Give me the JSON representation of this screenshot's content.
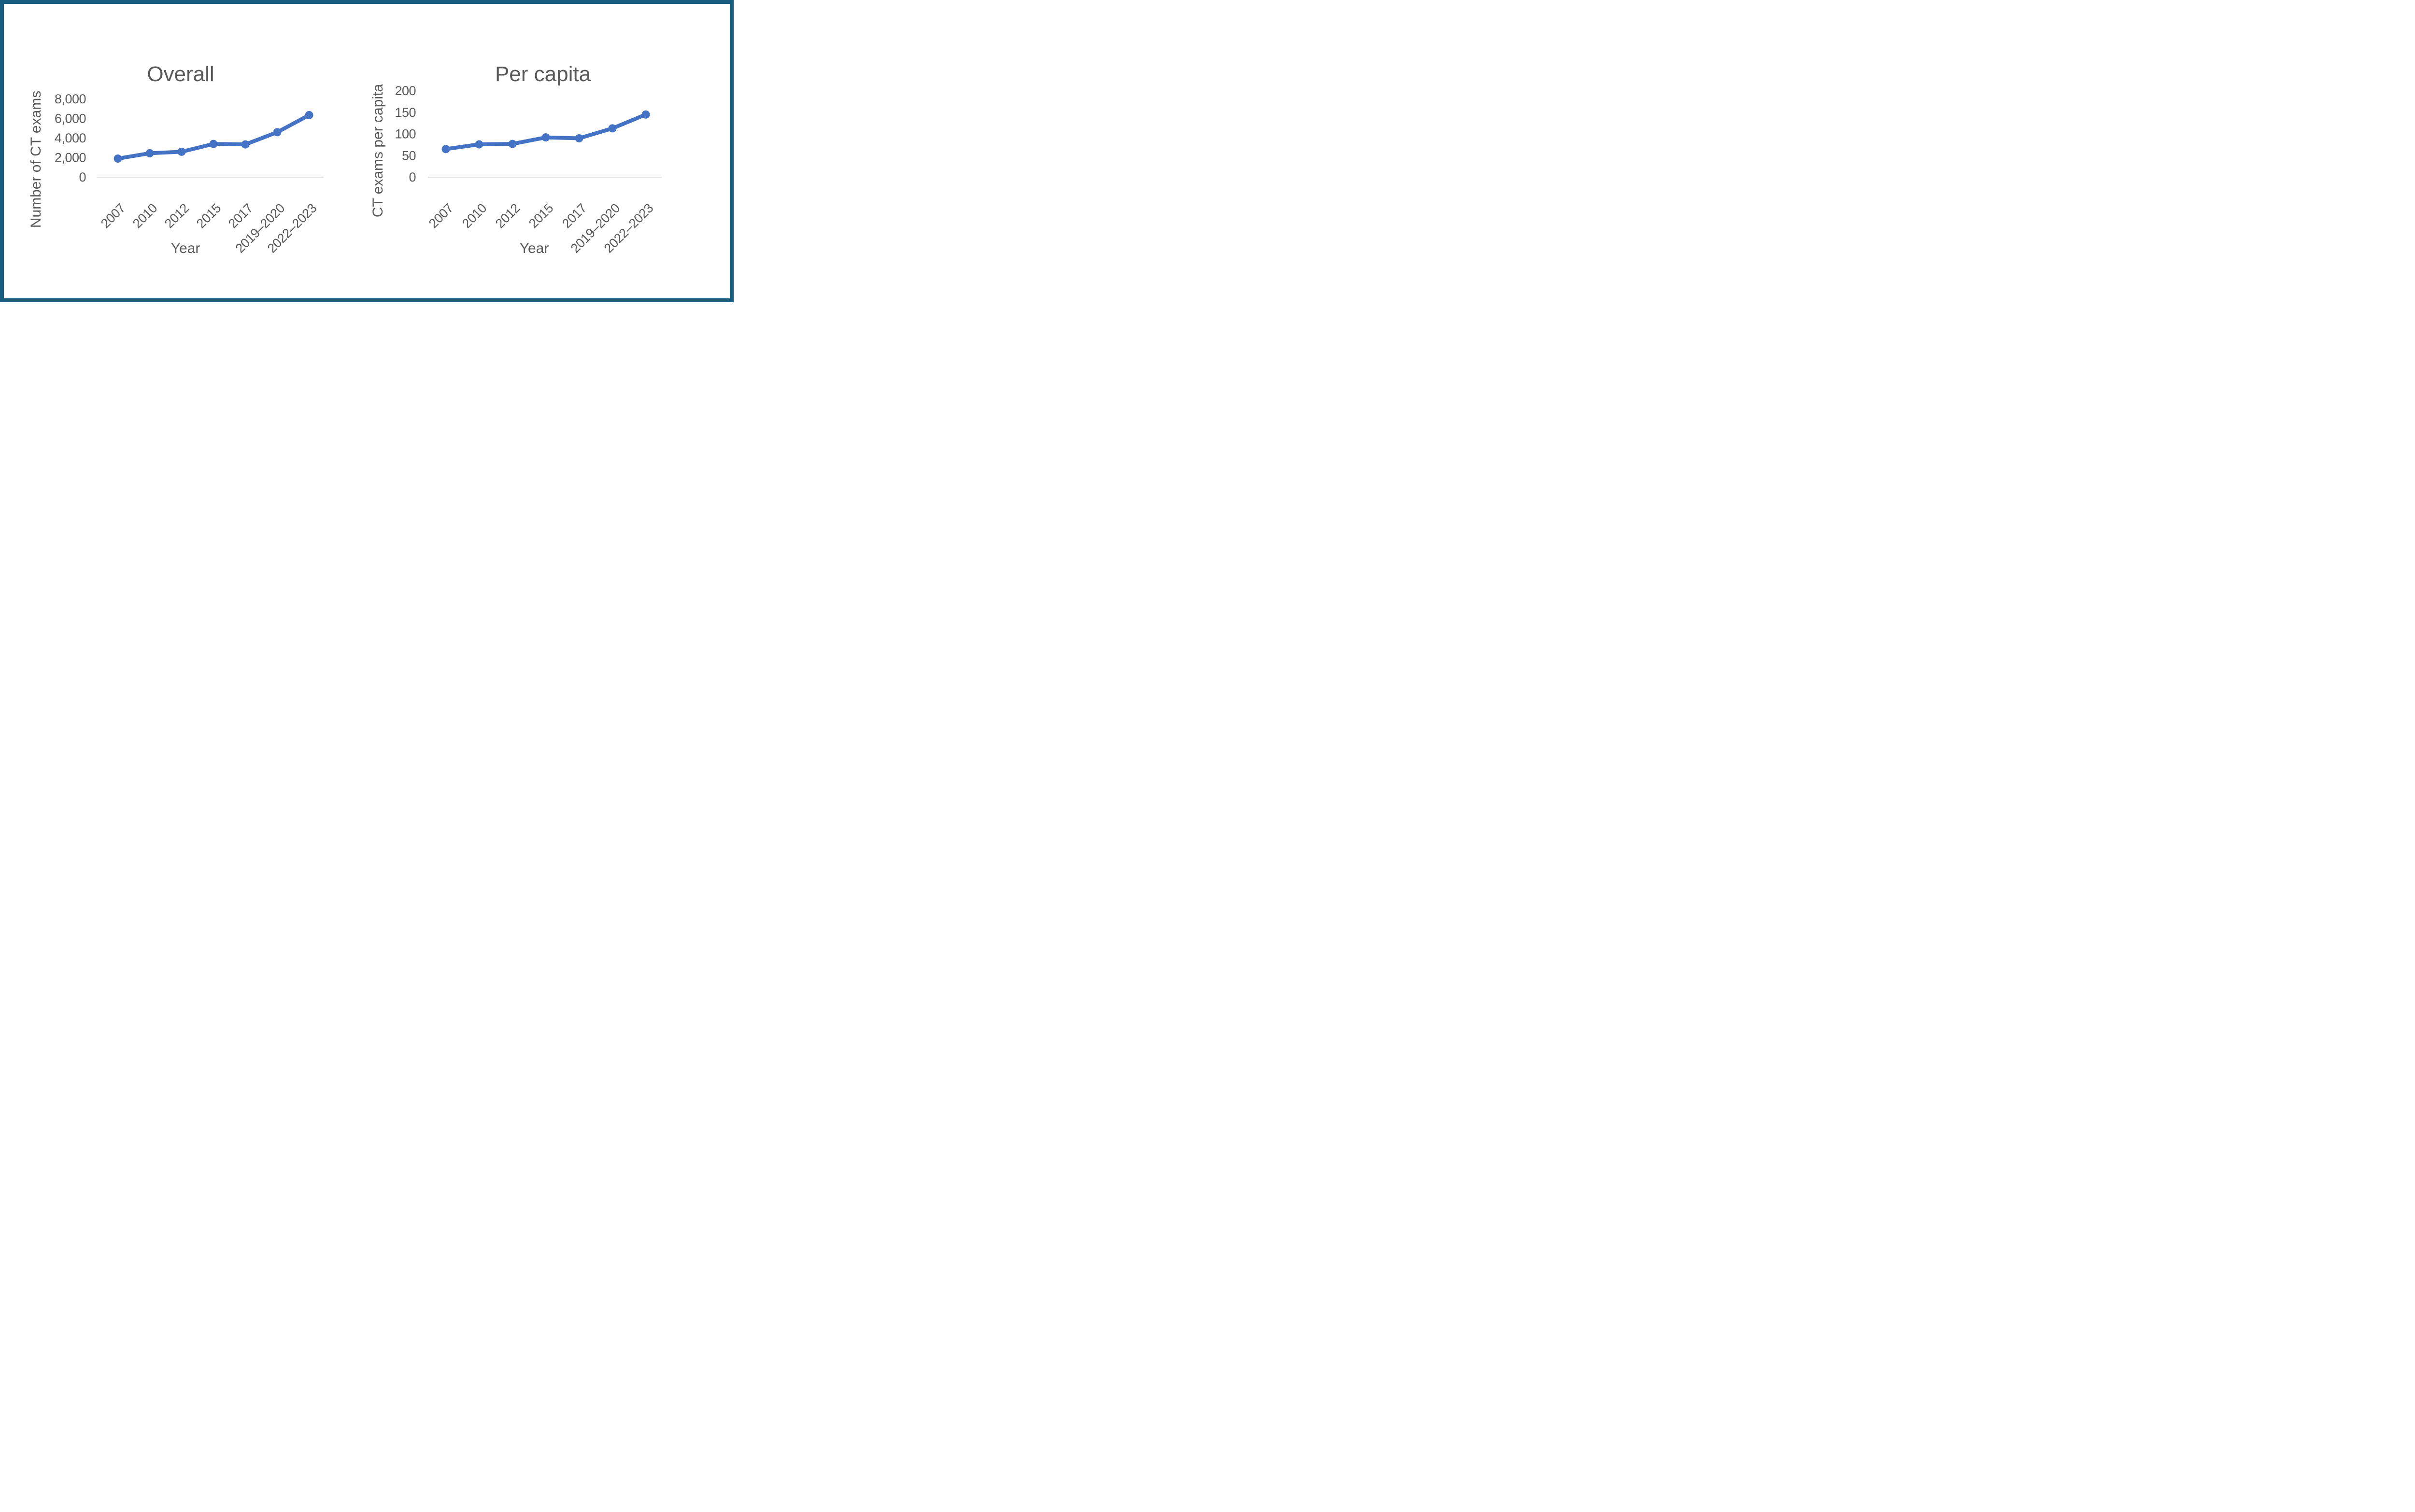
{
  "styles": {
    "frame_border_color": "#175E80",
    "background_color": "#FFFFFF",
    "line_color": "#4472C4",
    "text_color": "#595959",
    "axis_line_color": "#D9D9D9"
  },
  "chart_data": [
    {
      "type": "line",
      "title": "Overall",
      "xlabel": "Year",
      "ylabel": "Number of CT exams",
      "categories": [
        "2007",
        "2010",
        "2012",
        "2015",
        "2017",
        "2019–2020",
        "2022–2023"
      ],
      "values": [
        1900,
        2450,
        2600,
        3400,
        3350,
        4600,
        6350
      ],
      "ylim": [
        0,
        8000
      ],
      "y_tick_labels": [
        "8,000",
        "6,000",
        "4,000",
        "2,000",
        "0"
      ],
      "grid": false,
      "legend": false,
      "marker": "circle",
      "line_color": "#4472C4"
    },
    {
      "type": "line",
      "title": "Per capita",
      "xlabel": "Year",
      "ylabel": "CT exams per capita",
      "categories": [
        "2007",
        "2010",
        "2012",
        "2015",
        "2017",
        "2019–2020",
        "2022–2023"
      ],
      "values": [
        65,
        76,
        77,
        92,
        90,
        113,
        145
      ],
      "ylim": [
        0,
        200
      ],
      "y_tick_labels": [
        "200",
        "150",
        "100",
        "50",
        "0"
      ],
      "grid": false,
      "legend": false,
      "marker": "circle",
      "line_color": "#4472C4"
    }
  ]
}
